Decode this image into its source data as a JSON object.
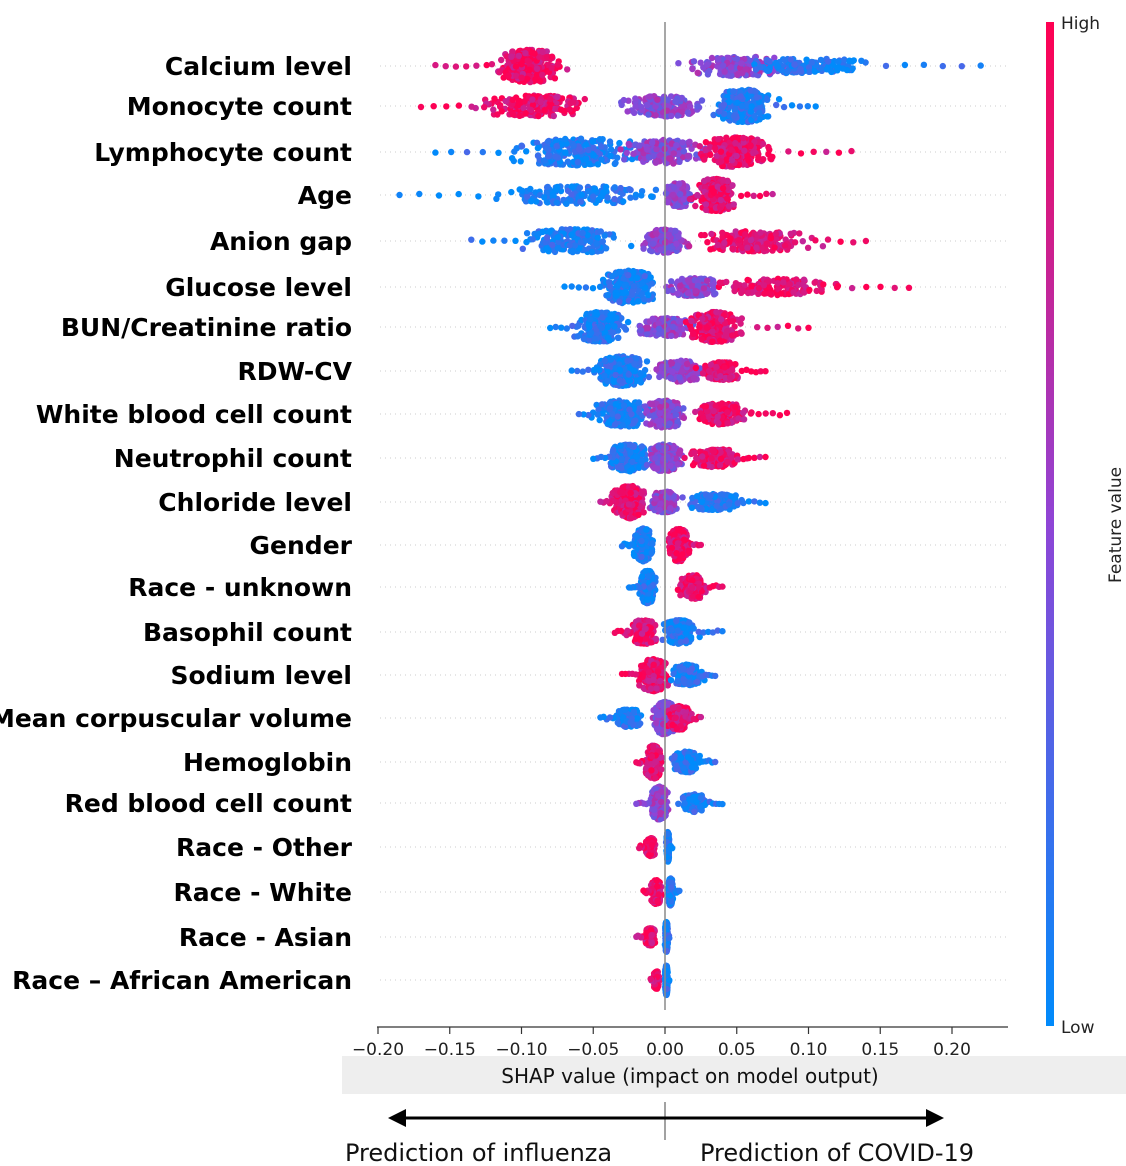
{
  "chart_data": {
    "type": "scatter",
    "subtype": "shap-beeswarm",
    "title": "",
    "xlabel": "SHAP value (impact on model output)",
    "xlim": [
      -0.2,
      0.24
    ],
    "x_ticks": [
      -0.2,
      -0.15,
      -0.1,
      -0.05,
      0.0,
      0.05,
      0.1,
      0.15,
      0.2
    ],
    "x_tick_labels": [
      "−0.20",
      "−0.15",
      "−0.10",
      "−0.05",
      "0.00",
      "0.05",
      "0.10",
      "0.15",
      "0.20"
    ],
    "colorbar": {
      "label": "Feature value",
      "high_label": "High",
      "low_label": "Low",
      "high_color": "#ff0052",
      "low_color": "#008bfb"
    },
    "direction": {
      "left_label": "Prediction of influenza",
      "right_label": "Prediction of COVID-19"
    },
    "features": [
      {
        "name": "Calcium level",
        "min": -0.16,
        "max": 0.22,
        "clusters": [
          [
            -0.095,
            0.025,
            1.0,
            "high"
          ],
          [
            0.05,
            0.045,
            0.55,
            "mid"
          ],
          [
            0.1,
            0.04,
            0.4,
            "low"
          ]
        ]
      },
      {
        "name": "Monocyte count",
        "min": -0.17,
        "max": 0.105,
        "clusters": [
          [
            -0.09,
            0.04,
            0.6,
            "high"
          ],
          [
            0.0,
            0.03,
            0.6,
            "mid"
          ],
          [
            0.055,
            0.02,
            1.0,
            "low"
          ]
        ]
      },
      {
        "name": "Lymphocyte count",
        "min": -0.16,
        "max": 0.13,
        "clusters": [
          [
            -0.06,
            0.05,
            0.8,
            "low"
          ],
          [
            0.0,
            0.03,
            0.7,
            "mid"
          ],
          [
            0.05,
            0.025,
            0.9,
            "high"
          ]
        ]
      },
      {
        "name": "Age",
        "min": -0.185,
        "max": 0.075,
        "clusters": [
          [
            -0.06,
            0.06,
            0.5,
            "low"
          ],
          [
            0.01,
            0.01,
            0.7,
            "mid"
          ],
          [
            0.035,
            0.015,
            1.0,
            "high"
          ]
        ]
      },
      {
        "name": "Anion gap",
        "min": -0.135,
        "max": 0.14,
        "clusters": [
          [
            -0.065,
            0.035,
            0.7,
            "low"
          ],
          [
            0.0,
            0.015,
            0.7,
            "mid"
          ],
          [
            0.06,
            0.04,
            0.6,
            "high"
          ]
        ]
      },
      {
        "name": "Glucose level",
        "min": -0.07,
        "max": 0.17,
        "clusters": [
          [
            -0.025,
            0.02,
            1.0,
            "low"
          ],
          [
            0.02,
            0.02,
            0.5,
            "mid"
          ],
          [
            0.08,
            0.04,
            0.45,
            "high"
          ]
        ]
      },
      {
        "name": "BUN/Creatinine ratio",
        "min": -0.08,
        "max": 0.1,
        "clusters": [
          [
            -0.045,
            0.018,
            0.9,
            "low"
          ],
          [
            0.0,
            0.02,
            0.5,
            "mid"
          ],
          [
            0.035,
            0.02,
            0.9,
            "high"
          ]
        ]
      },
      {
        "name": "RDW-CV",
        "min": -0.065,
        "max": 0.07,
        "clusters": [
          [
            -0.03,
            0.018,
            0.9,
            "low"
          ],
          [
            0.01,
            0.018,
            0.6,
            "mid"
          ],
          [
            0.04,
            0.015,
            0.5,
            "high"
          ]
        ]
      },
      {
        "name": "White blood cell count",
        "min": -0.06,
        "max": 0.085,
        "clusters": [
          [
            -0.03,
            0.02,
            0.8,
            "low"
          ],
          [
            0.0,
            0.015,
            0.8,
            "mid"
          ],
          [
            0.04,
            0.02,
            0.6,
            "high"
          ]
        ]
      },
      {
        "name": "Neutrophil count",
        "min": -0.05,
        "max": 0.07,
        "clusters": [
          [
            -0.025,
            0.015,
            0.8,
            "low"
          ],
          [
            0.0,
            0.012,
            0.8,
            "mid"
          ],
          [
            0.035,
            0.02,
            0.5,
            "high"
          ]
        ]
      },
      {
        "name": "Chloride level",
        "min": -0.045,
        "max": 0.07,
        "clusters": [
          [
            -0.025,
            0.012,
            1.0,
            "high"
          ],
          [
            0.0,
            0.01,
            0.6,
            "mid"
          ],
          [
            0.035,
            0.02,
            0.45,
            "low"
          ]
        ]
      },
      {
        "name": "Gender",
        "min": -0.03,
        "max": 0.025,
        "clusters": [
          [
            -0.015,
            0.007,
            1.0,
            "low"
          ],
          [
            0.01,
            0.007,
            1.0,
            "high"
          ]
        ]
      },
      {
        "name": "Race - unknown",
        "min": -0.025,
        "max": 0.04,
        "clusters": [
          [
            -0.012,
            0.006,
            1.0,
            "low"
          ],
          [
            0.02,
            0.01,
            0.7,
            "high"
          ]
        ]
      },
      {
        "name": "Basophil count",
        "min": -0.035,
        "max": 0.04,
        "clusters": [
          [
            -0.015,
            0.01,
            0.7,
            "high"
          ],
          [
            0.01,
            0.012,
            0.7,
            "low"
          ]
        ]
      },
      {
        "name": "Sodium level",
        "min": -0.03,
        "max": 0.035,
        "clusters": [
          [
            -0.008,
            0.01,
            1.0,
            "high"
          ],
          [
            0.015,
            0.01,
            0.6,
            "low"
          ]
        ]
      },
      {
        "name": "Mean corpuscular volume",
        "min": -0.045,
        "max": 0.025,
        "clusters": [
          [
            -0.025,
            0.01,
            0.5,
            "low"
          ],
          [
            0.0,
            0.008,
            1.0,
            "mid"
          ],
          [
            0.01,
            0.008,
            0.7,
            "high"
          ]
        ]
      },
      {
        "name": "Hemoglobin",
        "min": -0.02,
        "max": 0.035,
        "clusters": [
          [
            -0.008,
            0.006,
            1.0,
            "high"
          ],
          [
            0.015,
            0.01,
            0.6,
            "low"
          ]
        ]
      },
      {
        "name": "Red blood cell count",
        "min": -0.02,
        "max": 0.04,
        "clusters": [
          [
            -0.004,
            0.006,
            1.0,
            "mid"
          ],
          [
            0.02,
            0.01,
            0.5,
            "low"
          ]
        ]
      },
      {
        "name": "Race - Other",
        "min": -0.018,
        "max": 0.005,
        "clusters": [
          [
            -0.01,
            0.004,
            0.5,
            "high"
          ],
          [
            0.002,
            0.001,
            0.9,
            "low"
          ]
        ]
      },
      {
        "name": "Race - White",
        "min": -0.015,
        "max": 0.01,
        "clusters": [
          [
            -0.006,
            0.004,
            0.7,
            "high"
          ],
          [
            0.004,
            0.002,
            0.8,
            "low"
          ]
        ]
      },
      {
        "name": "Race - Asian",
        "min": -0.02,
        "max": 0.003,
        "clusters": [
          [
            -0.01,
            0.004,
            0.5,
            "high"
          ],
          [
            0.001,
            0.001,
            0.9,
            "low"
          ]
        ]
      },
      {
        "name": "Race – African American",
        "min": -0.01,
        "max": 0.003,
        "clusters": [
          [
            -0.006,
            0.002,
            0.5,
            "high"
          ],
          [
            0.001,
            0.001,
            0.9,
            "low"
          ]
        ]
      }
    ]
  }
}
